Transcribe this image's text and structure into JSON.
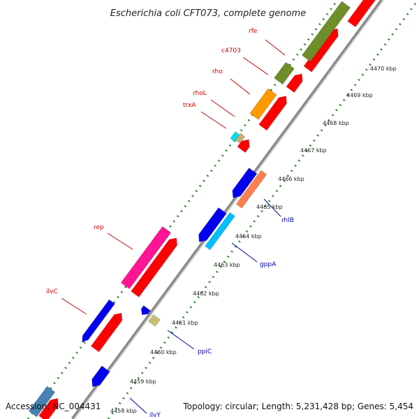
{
  "title": "Escherichia coli CFT073, complete genome",
  "footer": {
    "accession": "Accession: NC_004431",
    "summary": "Topology: circular; Length: 5,231,428 bp; Genes: 5,454"
  },
  "colors": {
    "backbone": "#999999",
    "tick_dots": "#2e8b2e",
    "label_top": "#cc0000",
    "label_bottom": "#0000aa"
  },
  "ticks": [
    "4458 kbp",
    "4459 kbp",
    "4460 kbp",
    "4461 kbp",
    "4462 kbp",
    "4463 kbp",
    "4464 kbp",
    "4465 kbp",
    "4466 kbp",
    "4467 kbp",
    "4468 kbp",
    "4469 kbp",
    "4470 kbp"
  ],
  "gene_labels_top": [
    "rfe",
    "c4703",
    "rho",
    "rhoL",
    "trxA",
    "rep",
    "ilvC"
  ],
  "gene_labels_bottom": [
    "rhlB",
    "gppA",
    "ppiC",
    "ilvY"
  ]
}
